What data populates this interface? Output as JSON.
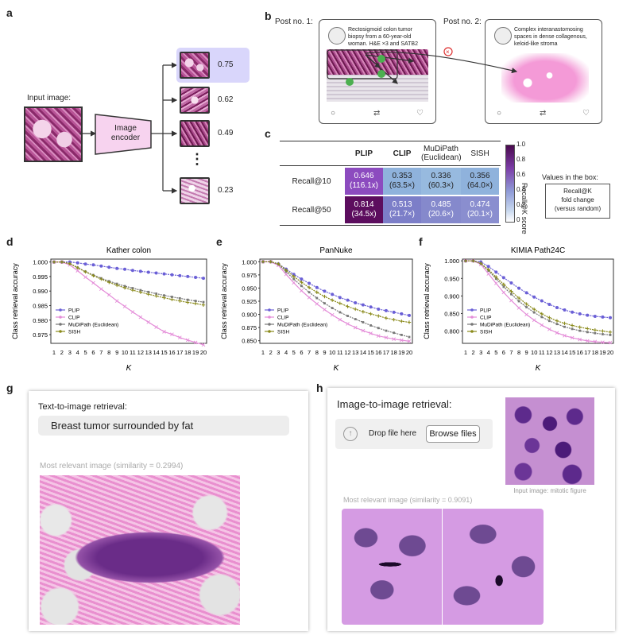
{
  "panel_labels": {
    "a": "a",
    "b": "b",
    "c": "c",
    "d": "d",
    "e": "e",
    "f": "f",
    "g": "g",
    "h": "h"
  },
  "panel_a": {
    "input_label": "Input image:",
    "encoder_label_line1": "Image",
    "encoder_label_line2": "encoder",
    "scores": [
      "0.75",
      "0.62",
      "0.49",
      "0.23"
    ],
    "dots": "⋮"
  },
  "panel_b": {
    "post1_label": "Post no. 1:",
    "post2_label": "Post no. 2:",
    "post1_text_l1": "Rectosigmoid colon tumor",
    "post1_text_l2": "biopsy from a 60-year-old",
    "post1_text_l3": "woman. H&E ×3 and SATB2",
    "post2_text_l1": "Complex interanastomosing",
    "post2_text_l2": "spaces in dense collagenous,",
    "post2_text_l3": "keloid-like stroma"
  },
  "panel_c": {
    "columns": [
      "PLIP",
      "CLIP",
      "MuDiPath",
      "(Euclidean)",
      "SISH"
    ],
    "rows": [
      {
        "label": "Recall@10",
        "cells": [
          {
            "v": "0.646",
            "f": "(116.1x)",
            "bg": "#8c4bbf",
            "fg": "#fff"
          },
          {
            "v": "0.353",
            "f": "(63.5×)",
            "bg": "#8fb2dc",
            "fg": "#222"
          },
          {
            "v": "0.336",
            "f": "(60.3×)",
            "bg": "#97badf",
            "fg": "#222"
          },
          {
            "v": "0.356",
            "f": "(64.0×)",
            "bg": "#8fb2dc",
            "fg": "#222"
          }
        ]
      },
      {
        "label": "Recall@50",
        "cells": [
          {
            "v": "0.814",
            "f": "(34.5x)",
            "bg": "#5c0d5e",
            "fg": "#fff"
          },
          {
            "v": "0.513",
            "f": "(21.7×)",
            "bg": "#7c7ec8",
            "fg": "#fff"
          },
          {
            "v": "0.485",
            "f": "(20.6×)",
            "bg": "#8589cc",
            "fg": "#fff"
          },
          {
            "v": "0.474",
            "f": "(20.1×)",
            "bg": "#8a8ecf",
            "fg": "#fff"
          }
        ]
      }
    ],
    "colorbar_ticks": [
      "1.0",
      "0.8",
      "0.6",
      "0.4",
      "0.2",
      "0"
    ],
    "colorbar_label": "Recall@K score",
    "legend_title": "Values in the box:",
    "legend_l1": "Recall@K",
    "legend_l2": "fold change",
    "legend_l3": "(versus random)"
  },
  "chart_data": [
    {
      "type": "line",
      "title": "Kather colon",
      "xlabel": "K",
      "ylabel": "Class retrieval accuracy",
      "x": [
        1,
        2,
        3,
        4,
        5,
        6,
        7,
        8,
        9,
        10,
        11,
        12,
        13,
        14,
        15,
        16,
        17,
        18,
        19,
        20
      ],
      "ylim": [
        0.972,
        1.001
      ],
      "yticks": [
        "1.000",
        "0.995",
        "0.990",
        "0.985",
        "0.980",
        "0.975"
      ],
      "ytick_vals": [
        1.0,
        0.995,
        0.99,
        0.985,
        0.98,
        0.975
      ],
      "series": [
        {
          "name": "PLIP",
          "color": "#6a5fd6",
          "marker": "circle",
          "values": [
            1.0,
            1.0,
            1.0,
            0.9997,
            0.9993,
            0.999,
            0.9986,
            0.9982,
            0.9978,
            0.9975,
            0.9971,
            0.9968,
            0.9965,
            0.9962,
            0.9959,
            0.9956,
            0.9953,
            0.995,
            0.9947,
            0.9944
          ]
        },
        {
          "name": "CLIP",
          "color": "#e48cd8",
          "marker": "x",
          "values": [
            1.0,
            1.0,
            0.999,
            0.997,
            0.9948,
            0.9928,
            0.9907,
            0.9887,
            0.9866,
            0.9847,
            0.9828,
            0.981,
            0.9793,
            0.9776,
            0.976,
            0.9751,
            0.974,
            0.9731,
            0.9723,
            0.9715
          ]
        },
        {
          "name": "MuDiPath (Euclidean)",
          "color": "#777777",
          "marker": "square",
          "values": [
            1.0,
            1.0,
            0.9995,
            0.9981,
            0.9967,
            0.9955,
            0.9944,
            0.9934,
            0.9925,
            0.9917,
            0.991,
            0.9903,
            0.9897,
            0.9891,
            0.9885,
            0.988,
            0.9875,
            0.987,
            0.9866,
            0.9862
          ]
        },
        {
          "name": "SISH",
          "color": "#8a8a1a",
          "marker": "plus",
          "values": [
            1.0,
            1.0,
            0.9994,
            0.998,
            0.9966,
            0.9953,
            0.9941,
            0.993,
            0.992,
            0.9911,
            0.9903,
            0.9896,
            0.9889,
            0.9883,
            0.9877,
            0.9871,
            0.9866,
            0.9861,
            0.9857,
            0.9852
          ]
        }
      ]
    },
    {
      "type": "line",
      "title": "PanNuke",
      "xlabel": "K",
      "ylabel": "Class retrieval accuracy",
      "x": [
        1,
        2,
        3,
        4,
        5,
        6,
        7,
        8,
        9,
        10,
        11,
        12,
        13,
        14,
        15,
        16,
        17,
        18,
        19,
        20
      ],
      "ylim": [
        0.845,
        1.005
      ],
      "yticks": [
        "1.000",
        "0.975",
        "0.950",
        "0.925",
        "0.900",
        "0.875",
        "0.850"
      ],
      "ytick_vals": [
        1.0,
        0.975,
        0.95,
        0.925,
        0.9,
        0.875,
        0.85
      ],
      "series": [
        {
          "name": "PLIP",
          "color": "#6a5fd6",
          "marker": "circle",
          "values": [
            1.0,
            1.0,
            0.996,
            0.986,
            0.976,
            0.967,
            0.959,
            0.951,
            0.944,
            0.938,
            0.932,
            0.927,
            0.922,
            0.918,
            0.914,
            0.91,
            0.907,
            0.904,
            0.901,
            0.898
          ]
        },
        {
          "name": "CLIP",
          "color": "#e48cd8",
          "marker": "x",
          "values": [
            1.0,
            1.0,
            0.993,
            0.976,
            0.96,
            0.945,
            0.932,
            0.92,
            0.909,
            0.899,
            0.89,
            0.882,
            0.875,
            0.869,
            0.864,
            0.859,
            0.856,
            0.853,
            0.851,
            0.849
          ]
        },
        {
          "name": "MuDiPath (Euclidean)",
          "color": "#777777",
          "marker": "square",
          "values": [
            1.0,
            1.0,
            0.995,
            0.981,
            0.967,
            0.954,
            0.942,
            0.931,
            0.921,
            0.912,
            0.904,
            0.897,
            0.891,
            0.885,
            0.879,
            0.874,
            0.869,
            0.865,
            0.861,
            0.857
          ]
        },
        {
          "name": "SISH",
          "color": "#8a8a1a",
          "marker": "plus",
          "values": [
            1.0,
            1.0,
            0.996,
            0.984,
            0.972,
            0.961,
            0.951,
            0.942,
            0.934,
            0.927,
            0.921,
            0.915,
            0.91,
            0.905,
            0.901,
            0.897,
            0.893,
            0.89,
            0.887,
            0.885
          ]
        }
      ]
    },
    {
      "type": "line",
      "title": "KIMIA Path24C",
      "xlabel": "K",
      "ylabel": "Class retrieval accuracy",
      "x": [
        1,
        2,
        3,
        4,
        5,
        6,
        7,
        8,
        9,
        10,
        11,
        12,
        13,
        14,
        15,
        16,
        17,
        18,
        19,
        20
      ],
      "ylim": [
        0.765,
        1.005
      ],
      "yticks": [
        "1.000",
        "0.950",
        "0.900",
        "0.850",
        "0.800"
      ],
      "ytick_vals": [
        1.0,
        0.95,
        0.9,
        0.85,
        0.8
      ],
      "series": [
        {
          "name": "PLIP",
          "color": "#6a5fd6",
          "marker": "circle",
          "values": [
            1.0,
            1.0,
            0.997,
            0.984,
            0.968,
            0.952,
            0.937,
            0.922,
            0.909,
            0.897,
            0.886,
            0.876,
            0.867,
            0.86,
            0.854,
            0.849,
            0.845,
            0.842,
            0.84,
            0.838
          ]
        },
        {
          "name": "CLIP",
          "color": "#e48cd8",
          "marker": "x",
          "values": [
            1.0,
            1.0,
            0.99,
            0.963,
            0.936,
            0.91,
            0.887,
            0.866,
            0.847,
            0.831,
            0.817,
            0.805,
            0.795,
            0.787,
            0.781,
            0.776,
            0.772,
            0.77,
            0.768,
            0.767
          ]
        },
        {
          "name": "MuDiPath (Euclidean)",
          "color": "#777777",
          "marker": "square",
          "values": [
            1.0,
            1.0,
            0.992,
            0.972,
            0.949,
            0.926,
            0.905,
            0.885,
            0.868,
            0.853,
            0.84,
            0.829,
            0.82,
            0.812,
            0.806,
            0.801,
            0.797,
            0.794,
            0.791,
            0.789
          ]
        },
        {
          "name": "SISH",
          "color": "#8a8a1a",
          "marker": "plus",
          "values": [
            1.0,
            1.0,
            0.993,
            0.975,
            0.954,
            0.933,
            0.913,
            0.894,
            0.877,
            0.862,
            0.849,
            0.838,
            0.829,
            0.822,
            0.816,
            0.811,
            0.807,
            0.803,
            0.8,
            0.797
          ]
        }
      ]
    }
  ],
  "panel_g": {
    "title": "Text-to-image retrieval:",
    "query": "Breast tumor surrounded by fat",
    "result_label": "Most relevant image (similarity = 0.2994)"
  },
  "panel_h": {
    "title": "Image-to-image retrieval:",
    "drop_label": "Drop file here",
    "browse_label": "Browse files",
    "input_caption": "Input image: mitotic figure",
    "result_label": "Most relevant image (similarity = 0.9091)"
  }
}
